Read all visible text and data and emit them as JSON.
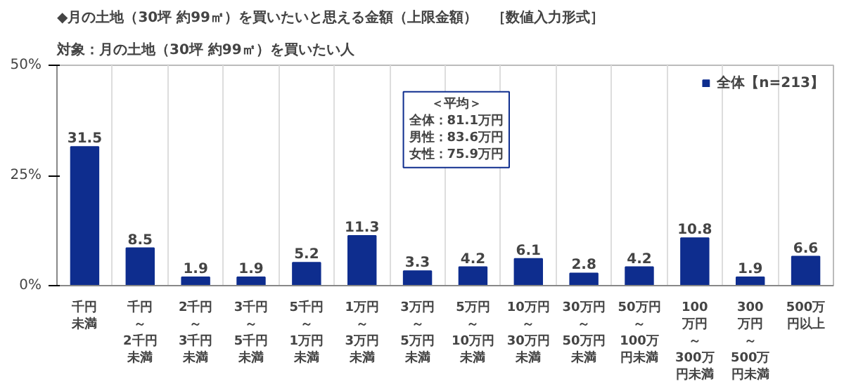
{
  "chart_data": {
    "type": "bar",
    "title": "◆月の土地（30坪 約99㎡）を買いたいと思える金額（上限金額）　［数値入力形式］",
    "subtitle": "対象：月の土地（30坪 約99㎡）を買いたい人",
    "categories": [
      "千円未満",
      "千円～2千円未満",
      "2千円～3千円未満",
      "3千円～5千円未満",
      "5千円～1万円未満",
      "1万円～3万円未満",
      "3万円～5万円未満",
      "5万円～10万円未満",
      "10万円～30万円未満",
      "30万円～50万円未満",
      "50万円～100万円未満",
      "100万円～300万円未満",
      "300万円～500万円未満",
      "500万円以上"
    ],
    "series": [
      {
        "name": "全体【n=213】",
        "color": "#0e2d8e",
        "values": [
          31.5,
          8.5,
          1.9,
          1.9,
          5.2,
          11.3,
          3.3,
          4.2,
          6.1,
          2.8,
          4.2,
          10.8,
          1.9,
          6.6
        ]
      }
    ],
    "ylim": [
      0,
      50
    ],
    "yticks": [
      {
        "value": 0,
        "label": "0%"
      },
      {
        "value": 25,
        "label": "25%"
      },
      {
        "value": 50,
        "label": "50%"
      }
    ],
    "annotations": [
      "＜平均＞",
      "全体：81.1万円",
      "男性：83.6万円",
      "女性：75.9万円"
    ],
    "data_labels": true,
    "grid": "x",
    "legend": "top right"
  }
}
